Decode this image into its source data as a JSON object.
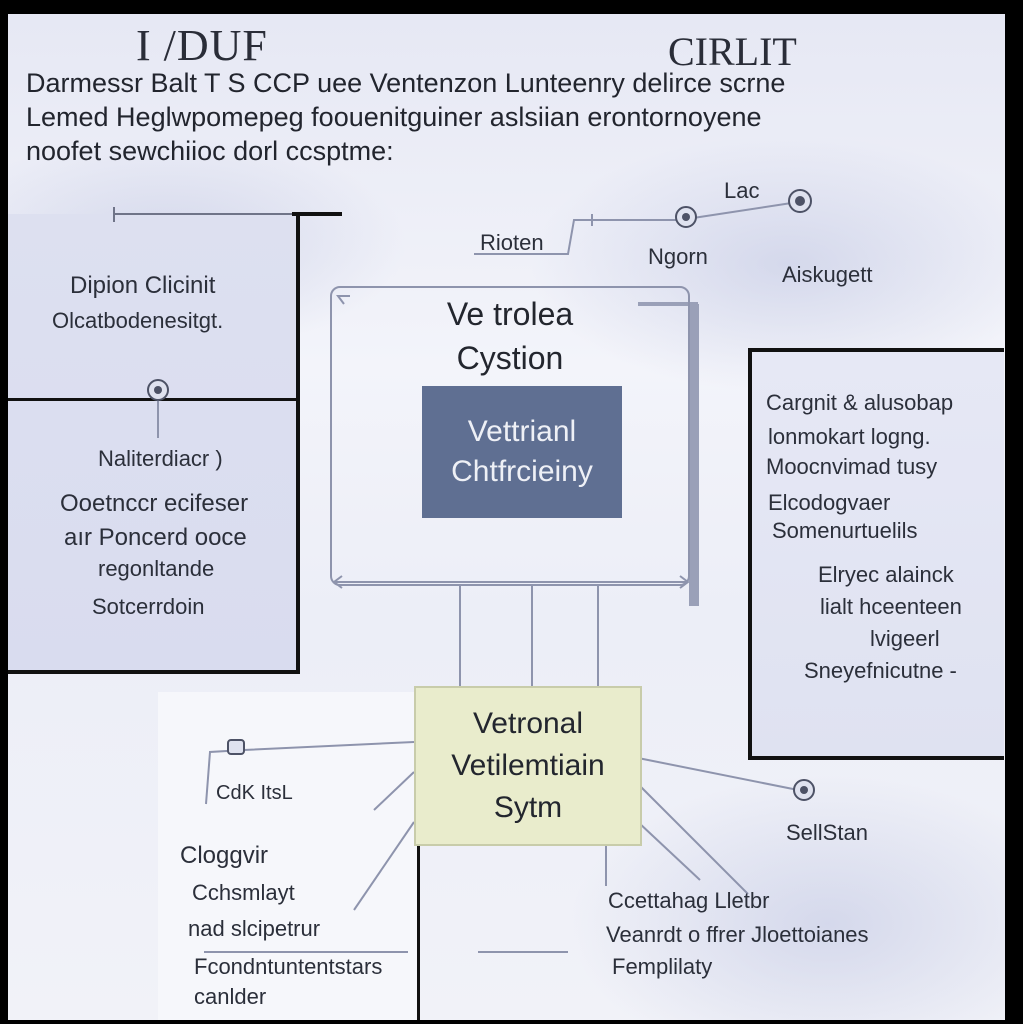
{
  "title_left": "I /DUF",
  "title_right": "CIRLIT",
  "intro": [
    "Darmessr Balt T S CCP uee Ventenzon Lunteenry delirce scrne",
    "Lemed Heglwpomepeg foouenitguiner aslsiian erontornoyene",
    "noofet sewchiioc dorl ccsptme:"
  ],
  "left_panel": {
    "heading": "Dipion Clicinit",
    "subheading": "Olcatbodenesitgt.",
    "node_label": "Naliterdiacr )",
    "body": [
      "Ooetnccr ecifeser",
      "aır Poncerd ooce",
      "regonltande",
      "Sotcerrdoin"
    ]
  },
  "top_labels": {
    "rioten": "Rioten",
    "lac": "Lac",
    "ngorn": "Ngorn",
    "aiskugett": "Aiskugett"
  },
  "center": {
    "title_lines": [
      "Ve trolea",
      "Cystion"
    ],
    "core_lines": [
      "Vettrianl",
      "Chtfrcieiny"
    ]
  },
  "right_panel": {
    "lines_a": [
      "Cargnit & alusobap",
      "lonmokart logng.",
      "Moocnvimad tusy",
      "Elcodogvaer",
      "Somenurtuelils"
    ],
    "lines_b": [
      "Elryec alainck",
      "lialt hceenteen",
      "lvigeerl",
      "Sneyefnicutne -"
    ]
  },
  "vetronal_box": {
    "lines": [
      "Vetronal",
      "Vetilemtiain",
      "Sytm"
    ]
  },
  "bottom_left": {
    "cdk": "CdK ItsL",
    "heading": "Cloggvir",
    "body": [
      "Cchsmlayt",
      "nad slcipetrur",
      "Fcondntuntentstars",
      "canlder"
    ]
  },
  "bottom_right": {
    "sellstan": "SellStan",
    "lines": [
      "Ccettahag Lletbr",
      "Veanrdt o ffrer Jloettoianes",
      "Femplilaty"
    ]
  },
  "colors": {
    "core_fill": "#5f6f92",
    "vetronal_fill": "#e9eccc",
    "line": "#8e94ad"
  }
}
